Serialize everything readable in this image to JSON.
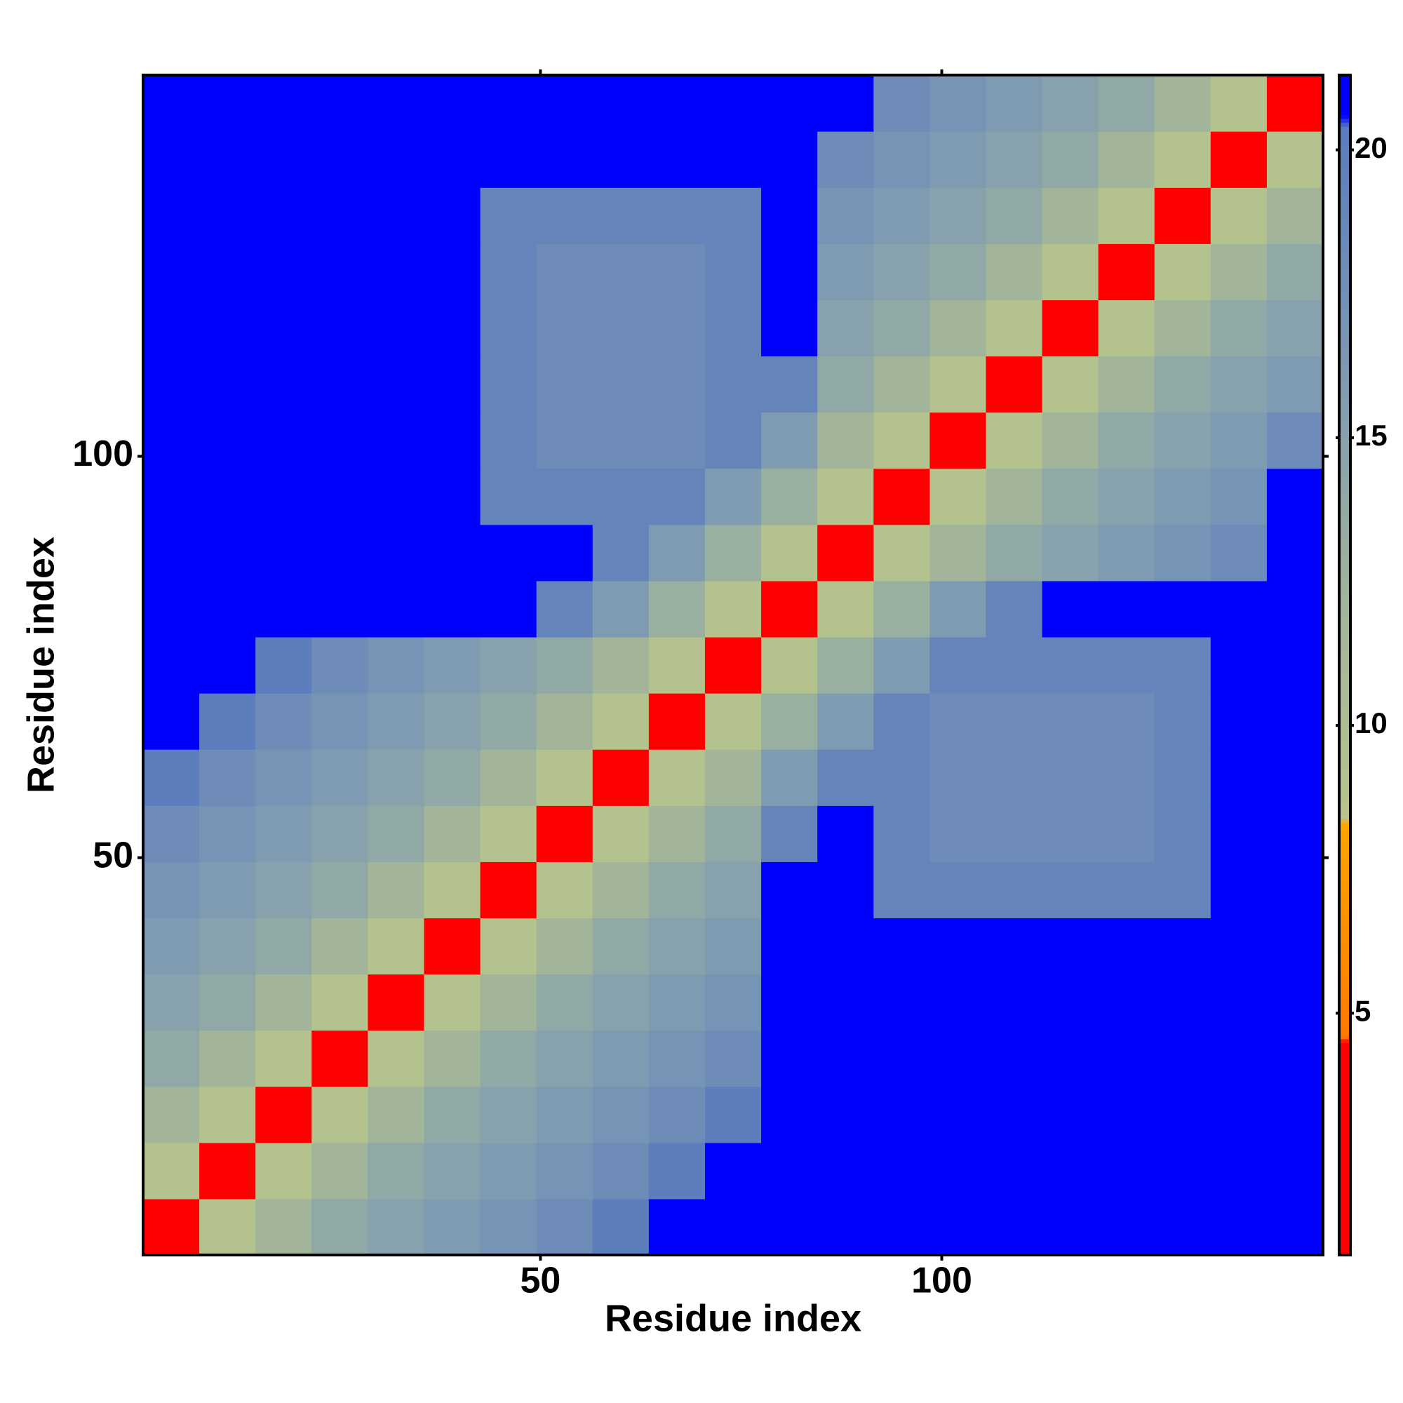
{
  "chart_data": {
    "type": "heatmap",
    "xlabel": "Residue index",
    "ylabel": "Residue index",
    "x": [
      4,
      11,
      18,
      25,
      32,
      39,
      46,
      53,
      60,
      67,
      74,
      81,
      88,
      95,
      102,
      109,
      116,
      123,
      130,
      137,
      144
    ],
    "y": [
      4,
      11,
      18,
      25,
      32,
      39,
      46,
      53,
      60,
      67,
      74,
      81,
      88,
      95,
      102,
      109,
      116,
      123,
      130,
      137,
      144
    ],
    "z": [
      [
        4,
        9,
        12,
        14,
        15,
        16,
        17,
        18,
        20,
        21,
        21,
        21,
        21,
        21,
        21,
        21,
        21,
        21,
        21,
        21,
        21
      ],
      [
        9,
        4,
        9,
        12,
        14,
        15,
        16,
        17,
        18,
        20,
        21,
        21,
        21,
        21,
        21,
        21,
        21,
        21,
        21,
        21,
        21
      ],
      [
        12,
        9,
        4,
        9,
        12,
        14,
        15,
        16,
        17,
        18,
        20,
        21,
        21,
        21,
        21,
        21,
        21,
        21,
        21,
        21,
        21
      ],
      [
        14,
        12,
        9,
        4,
        9,
        12,
        14,
        15,
        16,
        17,
        18,
        21,
        21,
        21,
        21,
        21,
        21,
        21,
        21,
        21,
        21
      ],
      [
        15,
        14,
        12,
        9,
        4,
        9,
        12,
        14,
        15,
        16,
        17,
        21,
        21,
        21,
        21,
        21,
        21,
        21,
        21,
        21,
        21
      ],
      [
        16,
        15,
        14,
        12,
        9,
        4,
        9,
        12,
        14,
        15,
        16,
        21,
        21,
        21,
        21,
        21,
        21,
        21,
        21,
        21,
        21
      ],
      [
        17,
        16,
        15,
        14,
        12,
        9,
        4,
        9,
        12,
        14,
        15,
        21,
        21,
        19,
        19,
        19,
        19,
        19,
        19,
        21,
        21
      ],
      [
        18,
        17,
        16,
        15,
        14,
        12,
        9,
        4,
        9,
        12,
        14,
        19,
        21,
        19,
        18,
        18,
        18,
        18,
        19,
        21,
        21
      ],
      [
        20,
        18,
        17,
        16,
        15,
        14,
        12,
        9,
        4,
        9,
        12,
        16,
        19,
        19,
        18,
        18,
        18,
        18,
        19,
        21,
        21
      ],
      [
        21,
        20,
        18,
        17,
        16,
        15,
        14,
        12,
        9,
        4,
        9,
        13,
        16,
        19,
        18,
        18,
        18,
        18,
        19,
        21,
        21
      ],
      [
        21,
        21,
        20,
        18,
        17,
        16,
        15,
        14,
        12,
        9,
        4,
        9,
        13,
        16,
        19,
        19,
        19,
        19,
        19,
        21,
        21
      ],
      [
        21,
        21,
        21,
        21,
        21,
        21,
        21,
        19,
        16,
        13,
        9,
        4,
        9,
        13,
        16,
        19,
        21,
        21,
        21,
        21,
        21
      ],
      [
        21,
        21,
        21,
        21,
        21,
        21,
        21,
        21,
        19,
        16,
        13,
        9,
        4,
        9,
        12,
        14,
        15,
        16,
        17,
        18,
        21
      ],
      [
        21,
        21,
        21,
        21,
        21,
        21,
        19,
        19,
        19,
        19,
        16,
        13,
        9,
        4,
        9,
        12,
        14,
        15,
        16,
        17,
        21
      ],
      [
        21,
        21,
        21,
        21,
        21,
        21,
        19,
        18,
        18,
        18,
        19,
        16,
        12,
        9,
        4,
        9,
        12,
        14,
        15,
        16,
        18
      ],
      [
        21,
        21,
        21,
        21,
        21,
        21,
        19,
        18,
        18,
        18,
        19,
        19,
        14,
        12,
        9,
        4,
        9,
        12,
        14,
        15,
        16
      ],
      [
        21,
        21,
        21,
        21,
        21,
        21,
        19,
        18,
        18,
        18,
        19,
        21,
        15,
        14,
        12,
        9,
        4,
        9,
        12,
        14,
        15
      ],
      [
        21,
        21,
        21,
        21,
        21,
        21,
        19,
        18,
        18,
        18,
        19,
        21,
        16,
        15,
        14,
        12,
        9,
        4,
        9,
        12,
        14
      ],
      [
        21,
        21,
        21,
        21,
        21,
        21,
        19,
        19,
        19,
        19,
        19,
        21,
        17,
        16,
        15,
        14,
        12,
        9,
        4,
        9,
        12
      ],
      [
        21,
        21,
        21,
        21,
        21,
        21,
        21,
        21,
        21,
        21,
        21,
        21,
        18,
        17,
        16,
        15,
        14,
        12,
        9,
        4,
        9
      ],
      [
        21,
        21,
        21,
        21,
        21,
        21,
        21,
        21,
        21,
        21,
        21,
        21,
        21,
        18,
        17,
        16,
        15,
        14,
        12,
        9,
        4
      ]
    ],
    "xlim": [
      0.5,
      147.5
    ],
    "ylim": [
      0.5,
      147.5
    ],
    "xticks": [
      50,
      100
    ],
    "yticks": [
      50,
      100
    ],
    "zlim": [
      0.8,
      21.3
    ],
    "zticks": [
      5,
      10,
      15,
      20
    ],
    "colorscale": [
      [
        0.8,
        "#ff0000"
      ],
      [
        4.5,
        "#ff0000"
      ],
      [
        4.6,
        "#ff7a00"
      ],
      [
        8.3,
        "#ffa500"
      ],
      [
        8.4,
        "#b7c48c"
      ],
      [
        12,
        "#a2b59a"
      ],
      [
        16,
        "#7e9bb2"
      ],
      [
        20.4,
        "#5a7bbd"
      ],
      [
        20.6,
        "#0000ff"
      ],
      [
        21.3,
        "#0000ff"
      ]
    ]
  }
}
